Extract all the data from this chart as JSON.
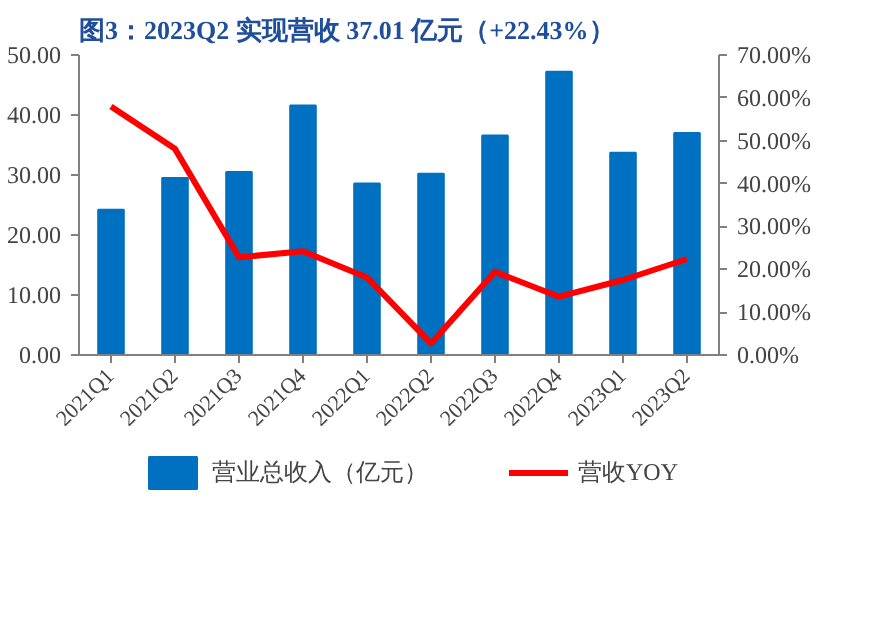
{
  "chart_data": {
    "type": "bar",
    "title": "图3：2023Q2 实现营收 37.01 亿元（+22.43%）",
    "categories": [
      "2021Q1",
      "2021Q2",
      "2021Q3",
      "2021Q4",
      "2022Q1",
      "2022Q2",
      "2022Q3",
      "2022Q4",
      "2023Q1",
      "2023Q2"
    ],
    "series": [
      {
        "name": "营业总收入（亿元）",
        "color": "#0070c0",
        "values": [
          24.2,
          29.5,
          30.5,
          41.6,
          28.6,
          30.2,
          36.6,
          47.2,
          33.7,
          37.0
        ]
      },
      {
        "name": "营收YOY",
        "color": "#ff0000",
        "type": "line",
        "axis": "y2",
        "values": [
          58.0,
          48.1,
          22.8,
          24.2,
          18.1,
          2.7,
          19.4,
          13.6,
          17.5,
          22.4
        ]
      }
    ],
    "ylim": [
      0,
      50
    ],
    "yticks": [
      {
        "value": 0,
        "label": "0.00"
      },
      {
        "value": 10,
        "label": "10.00"
      },
      {
        "value": 20,
        "label": "20.00"
      },
      {
        "value": 30,
        "label": "30.00"
      },
      {
        "value": 40,
        "label": "40.00"
      },
      {
        "value": 50,
        "label": "50.00"
      }
    ],
    "y2lim": [
      0,
      70
    ],
    "y2ticks": [
      {
        "value": 0,
        "label": "0.00%"
      },
      {
        "value": 10,
        "label": "10.00%"
      },
      {
        "value": 20,
        "label": "20.00%"
      },
      {
        "value": 30,
        "label": "30.00%"
      },
      {
        "value": 40,
        "label": "40.00%"
      },
      {
        "value": 50,
        "label": "50.00%"
      },
      {
        "value": 60,
        "label": "60.00%"
      },
      {
        "value": 70,
        "label": "70.00%"
      }
    ],
    "grid": false,
    "legend": "bottom",
    "marker": "none",
    "line_style": "solid"
  }
}
